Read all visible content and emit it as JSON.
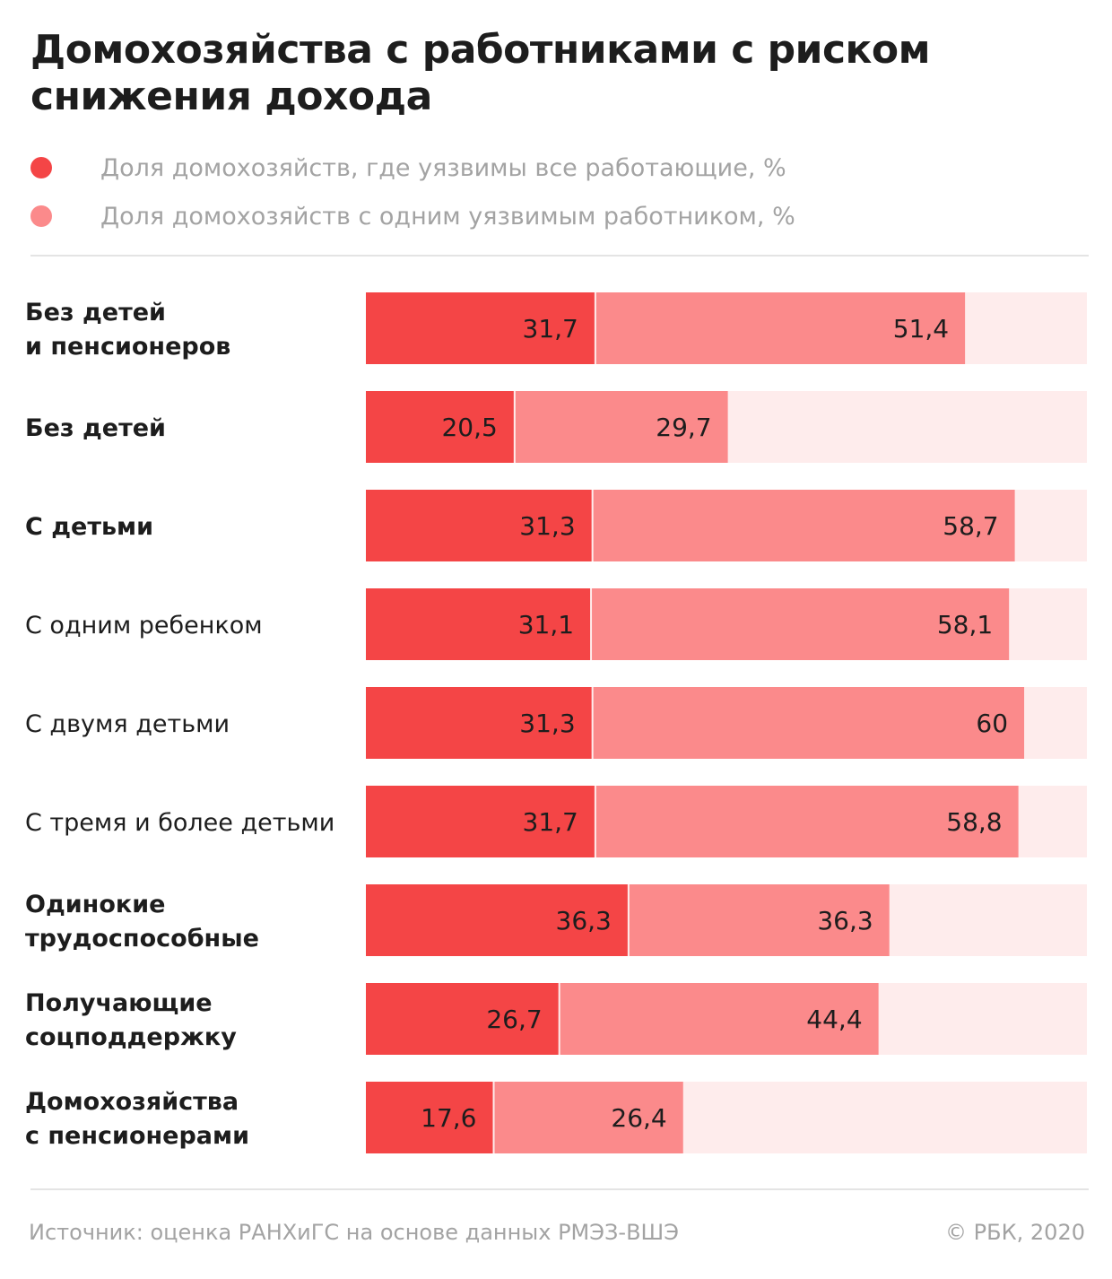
{
  "header": {
    "title": "Домохозяйства с работниками с риском снижения дохода"
  },
  "legend": [
    {
      "label": "Доля домохозяйств, где уязвимы все работающие, %",
      "color": "#f44546"
    },
    {
      "label": "Доля домохозяйств с одним уязвимым работником, %",
      "color": "#fb8a8b"
    }
  ],
  "colors": {
    "all_vulnerable": "#f44546",
    "one_vulnerable": "#fb8a8b",
    "track": "#feecec"
  },
  "chart_data": {
    "type": "bar",
    "orientation": "horizontal",
    "title": "Домохозяйства с работниками с риском снижения дохода",
    "xlim": [
      0,
      100
    ],
    "grid": false,
    "legend_position": "top",
    "categories": [
      {
        "lines": [
          "Без детей",
          "и пенсионеров"
        ],
        "bold": true
      },
      {
        "lines": [
          "Без детей"
        ],
        "bold": true
      },
      {
        "lines": [
          "С детьми"
        ],
        "bold": true
      },
      {
        "lines": [
          "С одним ребенком"
        ],
        "bold": false
      },
      {
        "lines": [
          "С двумя детьми"
        ],
        "bold": false
      },
      {
        "lines": [
          "С тремя и более детьми"
        ],
        "bold": false
      },
      {
        "lines": [
          "Одинокие",
          "трудоспособные"
        ],
        "bold": true
      },
      {
        "lines": [
          "Получающие",
          "соцподдержку"
        ],
        "bold": true
      },
      {
        "lines": [
          "Домохозяйства",
          "с пенсионерами"
        ],
        "bold": true
      }
    ],
    "series": [
      {
        "name": "Доля домохозяйств, где уязвимы все работающие, %",
        "values": [
          31.7,
          20.5,
          31.3,
          31.1,
          31.3,
          31.7,
          36.3,
          26.7,
          17.6
        ],
        "labels": [
          "31,7",
          "20,5",
          "31,3",
          "31,1",
          "31,3",
          "31,7",
          "36,3",
          "26,7",
          "17,6"
        ]
      },
      {
        "name": "Доля домохозяйств с одним уязвимым работником, %",
        "values": [
          51.4,
          29.7,
          58.7,
          58.1,
          60,
          58.8,
          36.3,
          44.4,
          26.4
        ],
        "labels": [
          "51,4",
          "29,7",
          "58,7",
          "58,1",
          "60",
          "58,8",
          "36,3",
          "44,4",
          "26,4"
        ]
      }
    ]
  },
  "footer": {
    "source": "Источник: оценка РАНХиГС на основе данных РМЭЗ-ВШЭ",
    "copyright": "© РБК, 2020"
  }
}
